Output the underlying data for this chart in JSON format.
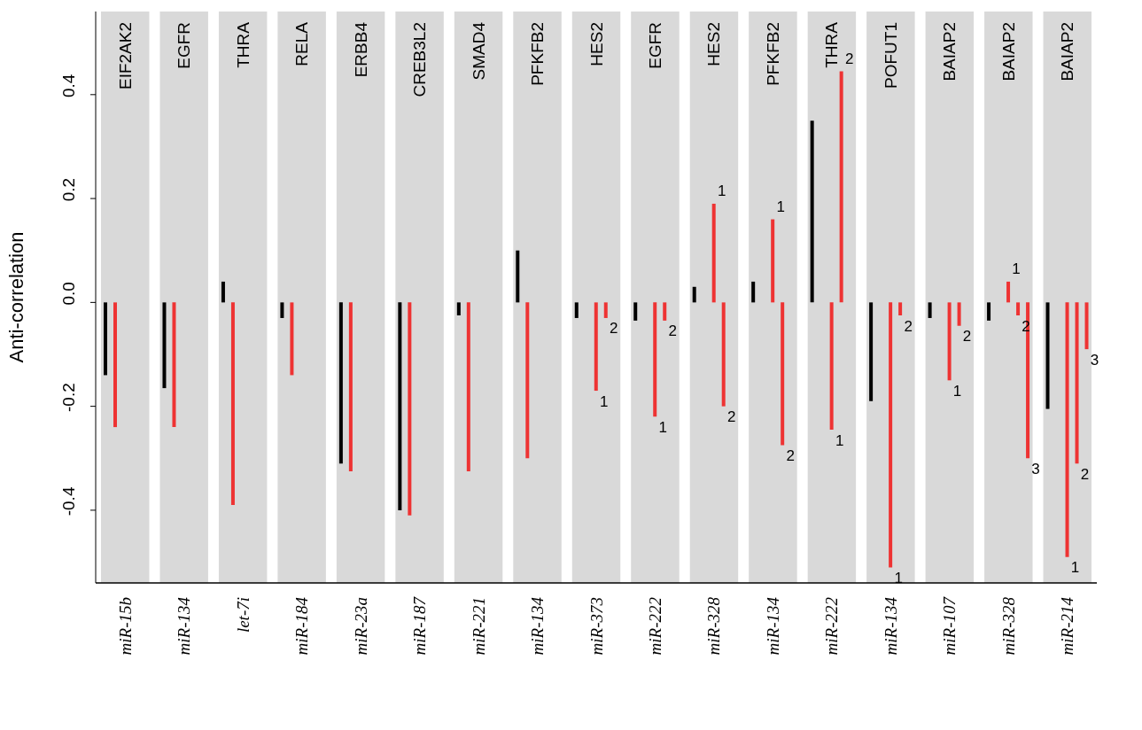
{
  "chart_data": {
    "type": "bar",
    "ylabel": "Anti-correlation",
    "categories": [
      "miR-15b",
      "miR-134",
      "let-7i",
      "miR-184",
      "miR-23a",
      "miR-187",
      "miR-221",
      "miR-134",
      "miR-373",
      "miR-222",
      "miR-328",
      "miR-134",
      "miR-222",
      "miR-134",
      "miR-107",
      "miR-328",
      "miR-214"
    ],
    "series": [
      {
        "color": "#000000",
        "values": [
          -0.14,
          -0.165,
          0.04,
          -0.03,
          -0.31,
          -0.4,
          -0.025,
          0.1,
          -0.03,
          -0.035,
          0.03,
          0.04,
          0.35,
          -0.19,
          -0.03,
          -0.035,
          -0.205
        ]
      },
      {
        "color": "#ee3333",
        "values": [
          -0.24,
          -0.24,
          -0.39,
          -0.14,
          -0.325,
          -0.41,
          -0.325,
          -0.3,
          null,
          null,
          null,
          null,
          null,
          null,
          null,
          null,
          null
        ]
      },
      {
        "name": "1",
        "color": "#ee3333",
        "values": [
          null,
          null,
          null,
          null,
          null,
          null,
          null,
          null,
          -0.17,
          -0.22,
          0.19,
          0.16,
          -0.245,
          -0.51,
          -0.15,
          0.04,
          -0.49
        ]
      },
      {
        "name": "2",
        "color": "#ee3333",
        "values": [
          null,
          null,
          null,
          null,
          null,
          null,
          null,
          null,
          -0.03,
          -0.035,
          -0.2,
          -0.275,
          0.445,
          -0.025,
          -0.045,
          -0.025,
          -0.31
        ]
      },
      {
        "name": "3",
        "color": "#ee3333",
        "values": [
          null,
          null,
          null,
          null,
          null,
          null,
          null,
          null,
          null,
          null,
          null,
          null,
          null,
          null,
          null,
          -0.3,
          -0.09
        ]
      }
    ],
    "annotations": [
      "EIF2AK2",
      "EGFR",
      "THRA",
      "RELA",
      "ERBB4",
      "CREB3L2",
      "SMAD4",
      "PFKFB2",
      "HES2",
      "EGFR",
      "HES2",
      "PFKFB2",
      "THRA",
      "POFUT1",
      "BAIAP2",
      "BAIAP2",
      "BAIAP2"
    ],
    "ylim": [
      -0.54,
      0.56
    ],
    "yticks": [
      -0.4,
      -0.2,
      {
        "value": 0,
        "label": "0.0"
      },
      0.2,
      0.4
    ],
    "grid": false,
    "legend": false
  }
}
